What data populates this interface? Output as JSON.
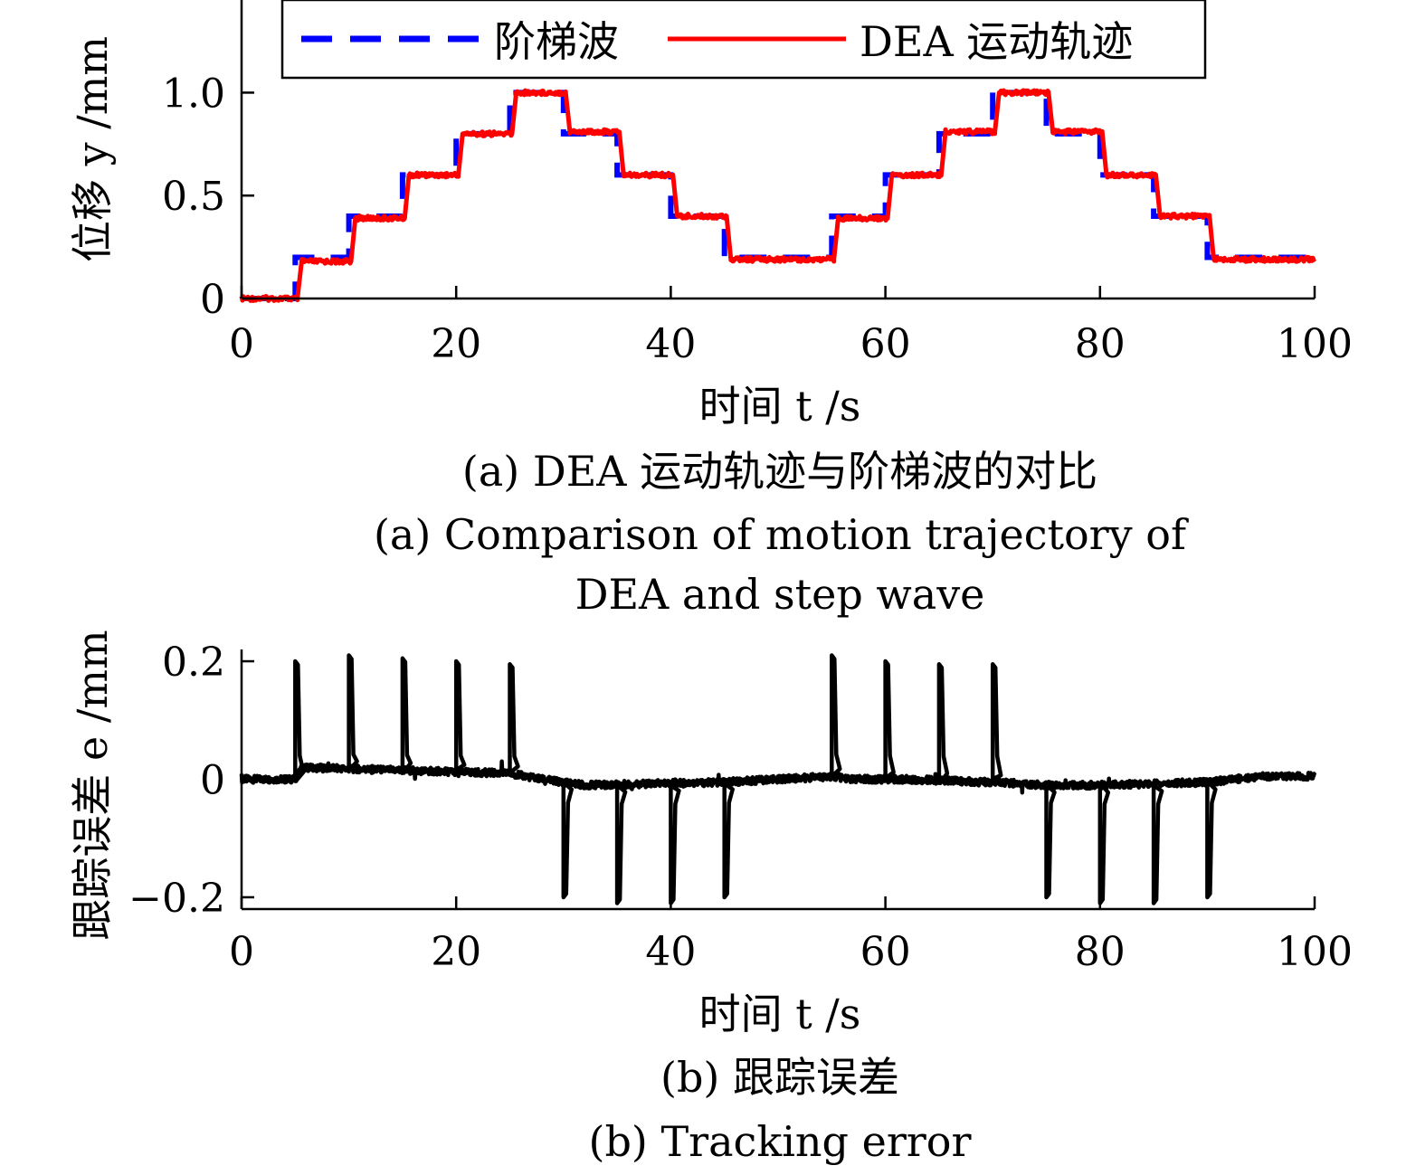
{
  "chart_data": [
    {
      "type": "line",
      "xlabel": "时间 t /s",
      "ylabel": "位移 y /mm",
      "xlim": [
        0,
        100
      ],
      "ylim": [
        0,
        1.45
      ],
      "xticks": [
        "0",
        "20",
        "40",
        "60",
        "80",
        "100"
      ],
      "yticks": [
        "0",
        "0.5",
        "1.0"
      ],
      "grid": false,
      "legend_position": "top",
      "series": [
        {
          "name": "阶梯波",
          "style": "dashed",
          "color": "#0000ff",
          "x": [
            0,
            5,
            5,
            10,
            10,
            15,
            15,
            20,
            20,
            25,
            25,
            30,
            30,
            35,
            35,
            40,
            40,
            45,
            45,
            55,
            55,
            60,
            60,
            65,
            65,
            70,
            70,
            75,
            75,
            80,
            80,
            85,
            85,
            90,
            90,
            100
          ],
          "y": [
            0,
            0,
            0.2,
            0.2,
            0.4,
            0.4,
            0.6,
            0.6,
            0.8,
            0.8,
            1.0,
            1.0,
            0.8,
            0.8,
            0.6,
            0.6,
            0.4,
            0.4,
            0.2,
            0.2,
            0.4,
            0.4,
            0.6,
            0.6,
            0.8,
            0.8,
            1.0,
            1.0,
            0.8,
            0.8,
            0.6,
            0.6,
            0.4,
            0.4,
            0.2,
            0.2
          ]
        },
        {
          "name": "DEA 运动轨迹",
          "style": "solid",
          "color": "#ff0000",
          "x": [
            0,
            5.2,
            5.6,
            10.2,
            10.6,
            15.2,
            15.6,
            20.2,
            20.6,
            25.2,
            25.6,
            30.2,
            30.6,
            35.2,
            35.6,
            40.2,
            40.6,
            45.2,
            45.6,
            55.2,
            55.6,
            60.2,
            60.6,
            65.2,
            65.6,
            70.2,
            70.6,
            75.2,
            75.6,
            80.2,
            80.6,
            85.2,
            85.6,
            90.2,
            90.6,
            100
          ],
          "y": [
            0,
            0,
            0.18,
            0.18,
            0.39,
            0.39,
            0.6,
            0.6,
            0.8,
            0.8,
            1.0,
            1.0,
            0.81,
            0.81,
            0.6,
            0.6,
            0.4,
            0.4,
            0.19,
            0.19,
            0.39,
            0.39,
            0.6,
            0.6,
            0.81,
            0.81,
            1.0,
            1.0,
            0.81,
            0.81,
            0.6,
            0.6,
            0.4,
            0.4,
            0.19,
            0.19
          ]
        }
      ],
      "caption_cn": "(a) DEA 运动轨迹与阶梯波的对比",
      "caption_en_line1": "(a) Comparison of motion trajectory of",
      "caption_en_line2": "DEA and step wave"
    },
    {
      "type": "line",
      "xlabel": "时间 t /s",
      "ylabel": "跟踪误差 e /mm",
      "xlim": [
        0,
        100
      ],
      "ylim": [
        -0.22,
        0.22
      ],
      "xticks": [
        "0",
        "20",
        "40",
        "60",
        "80",
        "100"
      ],
      "yticks": [
        "−0.2",
        "0",
        "0.2"
      ],
      "grid": false,
      "series": [
        {
          "color": "#000000",
          "style": "solid",
          "baseline": [
            [
              0,
              0
            ],
            [
              5,
              0
            ],
            [
              5.6,
              0.02
            ],
            [
              25,
              0.01
            ],
            [
              28,
              0
            ],
            [
              32,
              -0.01
            ],
            [
              45,
              -0.005
            ],
            [
              50,
              0
            ],
            [
              55,
              0.005
            ],
            [
              57,
              0
            ],
            [
              62,
              0
            ],
            [
              70,
              -0.005
            ],
            [
              75,
              -0.01
            ],
            [
              80,
              -0.01
            ],
            [
              90,
              -0.005
            ],
            [
              95,
              0.005
            ],
            [
              100,
              0.005
            ]
          ],
          "spikes": [
            {
              "t": 5,
              "e": 0.2
            },
            {
              "t": 10,
              "e": 0.21
            },
            {
              "t": 15,
              "e": 0.205
            },
            {
              "t": 20,
              "e": 0.2
            },
            {
              "t": 25,
              "e": 0.195
            },
            {
              "t": 30,
              "e": -0.2
            },
            {
              "t": 35,
              "e": -0.21
            },
            {
              "t": 40,
              "e": -0.21
            },
            {
              "t": 45,
              "e": -0.2
            },
            {
              "t": 55,
              "e": 0.21
            },
            {
              "t": 60,
              "e": 0.2
            },
            {
              "t": 65,
              "e": 0.195
            },
            {
              "t": 70,
              "e": 0.195
            },
            {
              "t": 75,
              "e": -0.2
            },
            {
              "t": 80,
              "e": -0.21
            },
            {
              "t": 85,
              "e": -0.21
            },
            {
              "t": 90,
              "e": -0.2
            }
          ]
        }
      ],
      "caption_cn": "(b) 跟踪误差",
      "caption_en": "(b) Tracking error"
    }
  ]
}
